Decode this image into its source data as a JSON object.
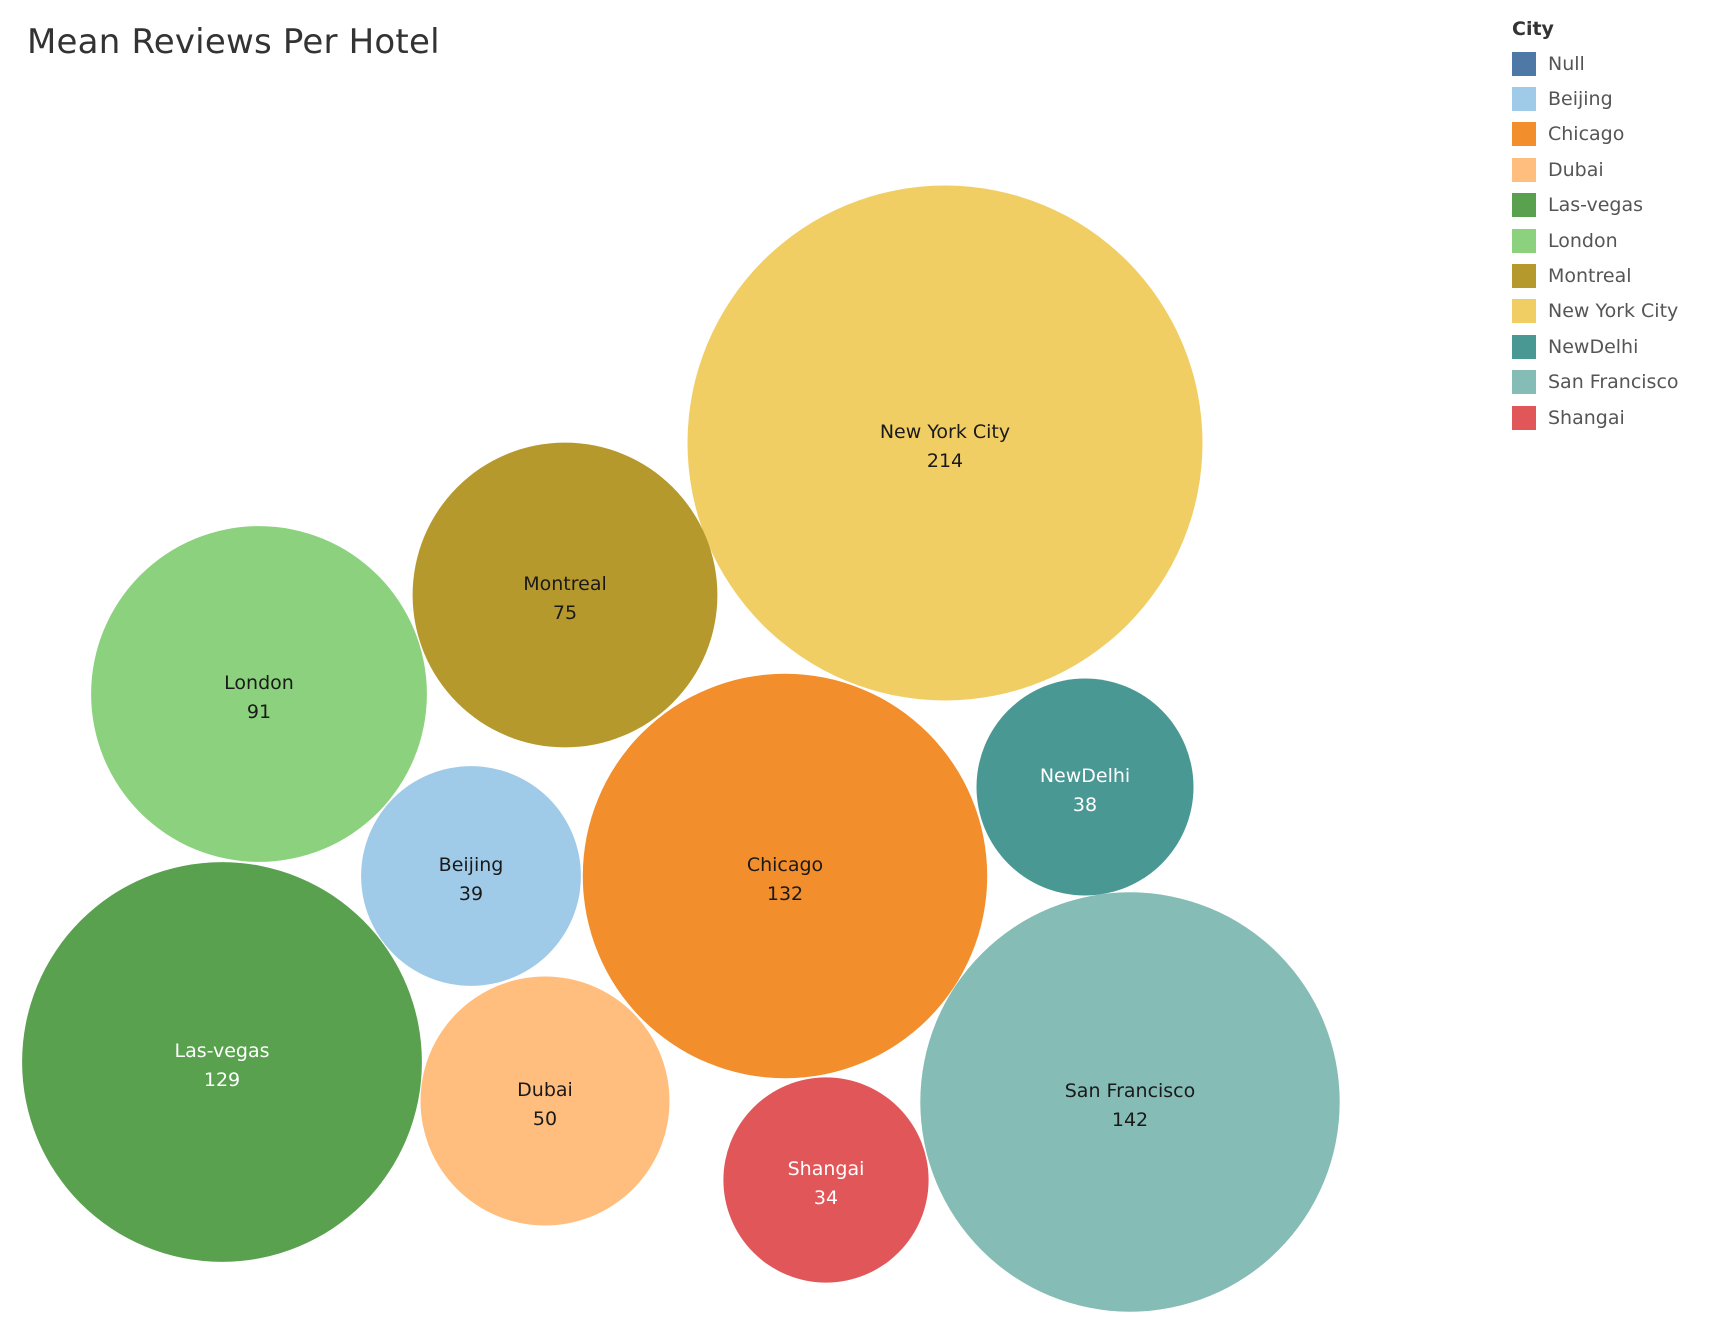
{
  "title": "Mean Reviews Per Hotel",
  "legend": {
    "title": "City",
    "items": [
      {
        "label": "Null",
        "color": "#4e79a7"
      },
      {
        "label": "Beijing",
        "color": "#a0cbe8"
      },
      {
        "label": "Chicago",
        "color": "#f28e2b"
      },
      {
        "label": "Dubai",
        "color": "#ffbe7d"
      },
      {
        "label": "Las-vegas",
        "color": "#59a14f"
      },
      {
        "label": "London",
        "color": "#8cd17d"
      },
      {
        "label": "Montreal",
        "color": "#b6992d"
      },
      {
        "label": "New York City",
        "color": "#f1ce63"
      },
      {
        "label": "NewDelhi",
        "color": "#499894"
      },
      {
        "label": "San Francisco",
        "color": "#86bcb6"
      },
      {
        "label": "Shangai",
        "color": "#e15759"
      }
    ]
  },
  "chart_data": {
    "type": "bubble",
    "title": "Mean Reviews Per Hotel",
    "legend_title": "City",
    "legend_position": "top-right",
    "points": [
      {
        "category": "New York City",
        "value": 214,
        "color": "#f1ce63",
        "label_color": "#1a1a1a"
      },
      {
        "category": "San Francisco",
        "value": 142,
        "color": "#86bcb6",
        "label_color": "#1a1a1a"
      },
      {
        "category": "Chicago",
        "value": 132,
        "color": "#f28e2b",
        "label_color": "#1a1a1a"
      },
      {
        "category": "Las-vegas",
        "value": 129,
        "color": "#59a14f",
        "label_color": "#ffffff"
      },
      {
        "category": "London",
        "value": 91,
        "color": "#8cd17d",
        "label_color": "#1a1a1a"
      },
      {
        "category": "Montreal",
        "value": 75,
        "color": "#b6992d",
        "label_color": "#1a1a1a"
      },
      {
        "category": "Dubai",
        "value": 50,
        "color": "#ffbe7d",
        "label_color": "#1a1a1a"
      },
      {
        "category": "Beijing",
        "value": 39,
        "color": "#a0cbe8",
        "label_color": "#1a1a1a"
      },
      {
        "category": "NewDelhi",
        "value": 38,
        "color": "#499894",
        "label_color": "#ffffff"
      },
      {
        "category": "Shangai",
        "value": 34,
        "color": "#e15759",
        "label_color": "#ffffff"
      }
    ]
  }
}
